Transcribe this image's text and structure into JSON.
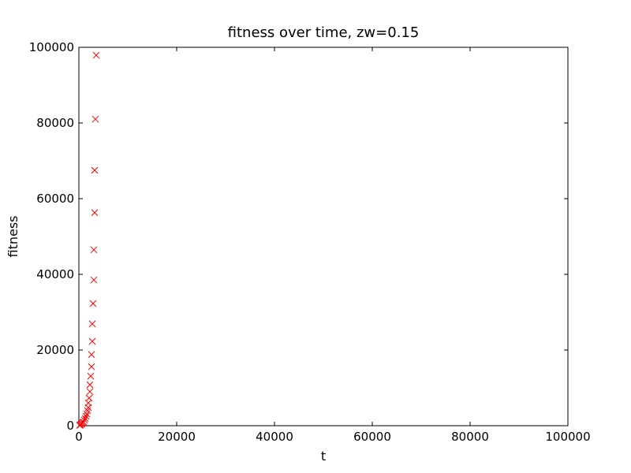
{
  "chart_data": {
    "type": "scatter",
    "title": "fitness over time, zw=0.15",
    "x_label": "t",
    "y_label": "fitness",
    "x": [
      161,
      323,
      484,
      645,
      806,
      968,
      1129,
      1290,
      1452,
      1613,
      1774,
      1935,
      1935,
      2097,
      2258,
      2258,
      2419,
      2581,
      2581,
      2742,
      2742,
      2903,
      3065,
      3065,
      3226,
      3226,
      3387,
      3548
    ],
    "values": [
      100,
      200,
      400,
      600,
      800,
      1000,
      1500,
      1900,
      2500,
      3100,
      4000,
      4800,
      6000,
      7300,
      9000,
      10800,
      13100,
      15600,
      18800,
      22300,
      26900,
      32300,
      38500,
      46500,
      56300,
      67500,
      81000,
      97900
    ],
    "color": "#ff0000",
    "marker": "x",
    "xlim": [
      0,
      100000
    ],
    "ylim": [
      0,
      100000
    ],
    "xticks": [
      0,
      20000,
      40000,
      60000,
      80000,
      100000
    ],
    "yticks": [
      0,
      20000,
      40000,
      60000,
      80000,
      100000
    ],
    "grid": false
  }
}
